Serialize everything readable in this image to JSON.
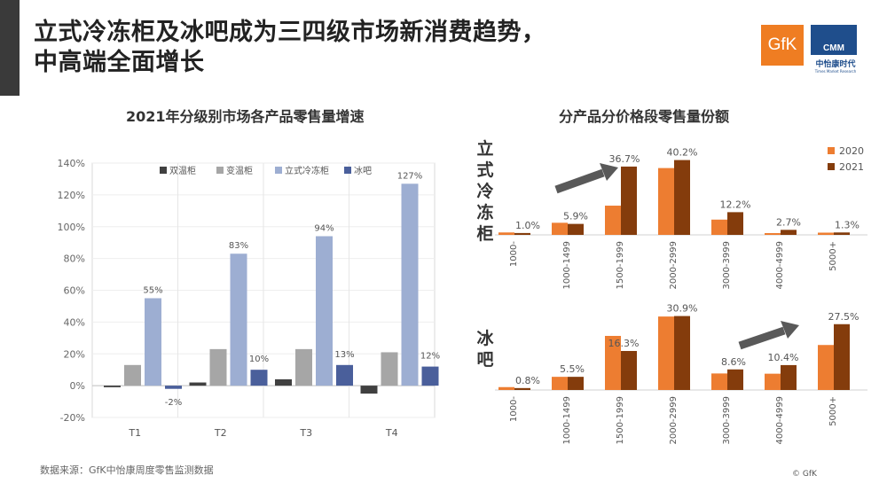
{
  "page": {
    "title_line1": "立式冷冻柜及冰吧成为三四级市场新消费趋势，",
    "title_line2": "中高端全面增长",
    "footnote": "数据来源：GfK中怡康周度零售监测数据",
    "copyright": "© GfK",
    "logos": {
      "gfk": "GfK",
      "cmm": "CMM",
      "cmm_name": "中怡康时代",
      "cmm_sub": "Times Market Research"
    }
  },
  "chart_data": [
    {
      "type": "bar",
      "title": "2021年分级别市场各产品零售量增速",
      "categories": [
        "T1",
        "T2",
        "T3",
        "T4"
      ],
      "ylim": [
        -20,
        140
      ],
      "yticks": [
        -20,
        0,
        20,
        40,
        60,
        80,
        100,
        120,
        140
      ],
      "ytick_labels": [
        "-20%",
        "0%",
        "20%",
        "40%",
        "60%",
        "80%",
        "100%",
        "120%",
        "140%"
      ],
      "legend": "top",
      "series": [
        {
          "name": "双温柜",
          "color": "#404040",
          "values": [
            -1,
            2,
            4,
            -5
          ]
        },
        {
          "name": "变温柜",
          "color": "#a6a6a6",
          "values": [
            13,
            23,
            23,
            21
          ]
        },
        {
          "name": "立式冷冻柜",
          "color": "#9daed2",
          "values": [
            55,
            83,
            94,
            127
          ]
        },
        {
          "name": "冰吧",
          "color": "#4a5f9b",
          "values": [
            -2,
            10,
            13,
            12
          ]
        }
      ],
      "data_labels": [
        {
          "series": 2,
          "category": 0,
          "text": "55%"
        },
        {
          "series": 3,
          "category": 0,
          "text": "-2%"
        },
        {
          "series": 2,
          "category": 1,
          "text": "83%"
        },
        {
          "series": 3,
          "category": 1,
          "text": "10%"
        },
        {
          "series": 2,
          "category": 2,
          "text": "94%"
        },
        {
          "series": 3,
          "category": 2,
          "text": "13%"
        },
        {
          "series": 2,
          "category": 3,
          "text": "127%"
        },
        {
          "series": 3,
          "category": 3,
          "text": "12%"
        }
      ]
    },
    {
      "type": "bar",
      "title": "分产品分价格段零售量份额",
      "row_label": "立式冷冻柜",
      "categories": [
        "1000-",
        "1000-1499",
        "1500-1999",
        "2000-2999",
        "3000-3999",
        "4000-4999",
        "5000+"
      ],
      "legend": "top-right",
      "series": [
        {
          "name": "2020",
          "color": "#ed7d31",
          "values": [
            1.3,
            6.5,
            15.7,
            35.9,
            8.2,
            0.6,
            1.2
          ]
        },
        {
          "name": "2021",
          "color": "#843c0c",
          "values": [
            1.0,
            5.9,
            36.7,
            40.2,
            12.2,
            2.7,
            1.3
          ]
        }
      ],
      "data_labels": [
        "1.0%",
        "5.9%",
        "36.7%",
        "40.2%",
        "12.2%",
        "2.7%",
        "1.3%"
      ]
    },
    {
      "type": "bar",
      "row_label": "冰吧",
      "categories": [
        "1000-",
        "1000-1499",
        "1500-1999",
        "2000-2999",
        "3000-3999",
        "4000-4999",
        "5000+"
      ],
      "series": [
        {
          "name": "2020",
          "color": "#ed7d31",
          "values": [
            1.2,
            5.5,
            22.6,
            30.7,
            6.9,
            6.8,
            18.8
          ]
        },
        {
          "name": "2021",
          "color": "#843c0c",
          "values": [
            0.8,
            5.5,
            16.3,
            30.9,
            8.6,
            10.4,
            27.5
          ]
        }
      ],
      "data_labels": [
        "0.8%",
        "5.5%",
        "16.3%",
        "30.9%",
        "8.6%",
        "10.4%",
        "27.5%"
      ]
    }
  ]
}
